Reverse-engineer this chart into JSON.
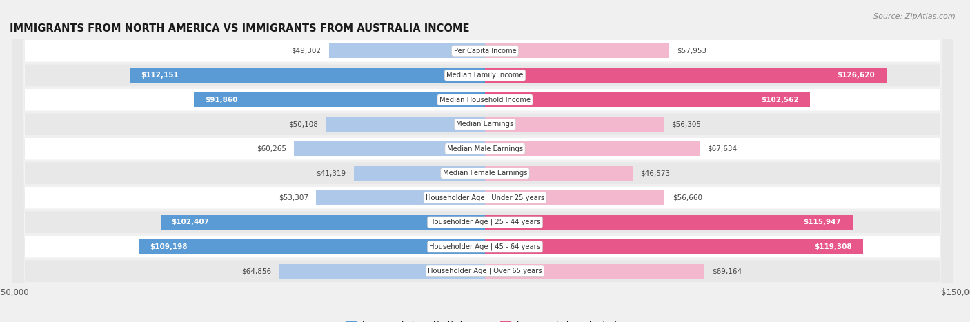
{
  "title": "IMMIGRANTS FROM NORTH AMERICA VS IMMIGRANTS FROM AUSTRALIA INCOME",
  "source": "Source: ZipAtlas.com",
  "categories": [
    "Per Capita Income",
    "Median Family Income",
    "Median Household Income",
    "Median Earnings",
    "Median Male Earnings",
    "Median Female Earnings",
    "Householder Age | Under 25 years",
    "Householder Age | 25 - 44 years",
    "Householder Age | 45 - 64 years",
    "Householder Age | Over 65 years"
  ],
  "north_america": [
    49302,
    112151,
    91860,
    50108,
    60265,
    41319,
    53307,
    102407,
    109198,
    64856
  ],
  "australia": [
    57953,
    126620,
    102562,
    56305,
    67634,
    46573,
    56660,
    115947,
    119308,
    69164
  ],
  "north_america_labels": [
    "$49,302",
    "$112,151",
    "$91,860",
    "$50,108",
    "$60,265",
    "$41,319",
    "$53,307",
    "$102,407",
    "$109,198",
    "$64,856"
  ],
  "australia_labels": [
    "$57,953",
    "$126,620",
    "$102,562",
    "$56,305",
    "$67,634",
    "$46,573",
    "$56,660",
    "$115,947",
    "$119,308",
    "$69,164"
  ],
  "na_color_light": "#adc8e8",
  "na_color_dark": "#5b9bd5",
  "au_color_light": "#f4b8ce",
  "au_color_dark": "#e8578a",
  "max_value": 150000,
  "bar_height": 0.58,
  "bg_color": "#f0f0f0",
  "row_color_odd": "#ffffff",
  "row_color_even": "#e8e8e8",
  "outside_label_color": "#444444",
  "inside_label_color": "#ffffff",
  "threshold": 75000,
  "legend_na": "Immigrants from North America",
  "legend_au": "Immigrants from Australia"
}
